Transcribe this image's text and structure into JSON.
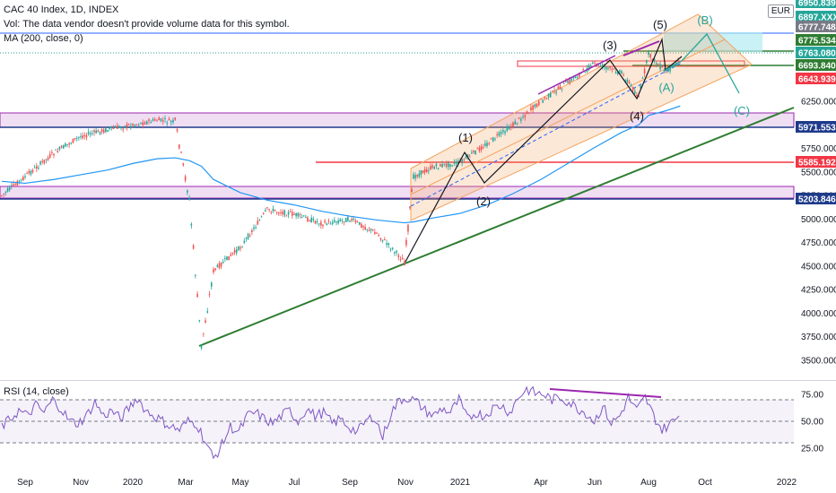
{
  "header": {
    "title": "CAC 40 Index, 1D, INDEX",
    "volume_note": "Vol: The data vendor doesn't provide volume data for this symbol.",
    "ma_label": "MA (200, close, 0)",
    "rsi_label": "RSI (14, close)",
    "currency": "EUR"
  },
  "colors": {
    "up": "#26a69a",
    "down": "#ef5350",
    "ma": "#2196f3",
    "trend": "#2e7d32",
    "channel": "#f4a460",
    "wave_black": "#131722",
    "wave_teal": "#26a69a",
    "rsi": "#7e57c2",
    "zone": "#9c27b0",
    "blue_line": "#1e3a8a",
    "red_line": "#f23645"
  },
  "x_axis": {
    "ticks": [
      "Sep",
      "Nov",
      "2020",
      "Mar",
      "May",
      "Jul",
      "Sep",
      "Nov",
      "2021",
      "Apr",
      "Jun",
      "Aug",
      "Oct",
      "2022"
    ]
  },
  "price_axis": {
    "ticks": [
      "6250.000",
      "6000.000",
      "5750.000",
      "5500.000",
      "5250.000",
      "5000.000",
      "4750.000",
      "4500.000",
      "4250.000",
      "4000.000",
      "3750.000",
      "3500.000"
    ],
    "tags": [
      {
        "value": "6950.839",
        "color": "#26a69a"
      },
      {
        "value": "6897.XXX",
        "color": "#26a69a"
      },
      {
        "value": "6777.748",
        "color": "#787b86"
      },
      {
        "value": "6775.534",
        "color": "#2e7d32"
      },
      {
        "value": "6763.080",
        "color": "#26a69a"
      },
      {
        "value": "6693.840",
        "color": "#2e7d32"
      },
      {
        "value": "6643.939",
        "color": "#f23645"
      },
      {
        "value": "5971.553",
        "color": "#1e3a8a"
      },
      {
        "value": "5585.192",
        "color": "#f23645"
      },
      {
        "value": "5203.846",
        "color": "#1e3a8a"
      }
    ]
  },
  "rsi_axis": {
    "ticks": [
      "75.00",
      "50.00",
      "25.00"
    ]
  },
  "waves": [
    "(1)",
    "(2)",
    "(3)",
    "(4)",
    "(5)",
    "(A)",
    "(B)",
    "(C)"
  ],
  "chart_data": {
    "type": "line",
    "title": "CAC 40 Index, 1D, INDEX",
    "xlabel": "",
    "ylabel": "",
    "ylim": [
      3400,
      6980
    ],
    "grid": false,
    "x": [
      "2019-08",
      "2019-09",
      "2019-10",
      "2019-11",
      "2019-12",
      "2020-01",
      "2020-02",
      "2020-02-20",
      "2020-03-05",
      "2020-03-18",
      "2020-04",
      "2020-05",
      "2020-06",
      "2020-07",
      "2020-08",
      "2020-09",
      "2020-10",
      "2020-10-30",
      "2020-11-10",
      "2020-12",
      "2021-01",
      "2021-02",
      "2021-03",
      "2021-04",
      "2021-05",
      "2021-06",
      "2021-07",
      "2021-07-20",
      "2021-08",
      "2021-08-20",
      "2021-09-05"
    ],
    "series": [
      {
        "name": "CAC 40 Index",
        "values": [
          5250,
          5450,
          5700,
          5880,
          5950,
          6000,
          6050,
          6030,
          5200,
          3650,
          4450,
          4700,
          5100,
          5050,
          4950,
          5000,
          4850,
          4550,
          5450,
          5550,
          5600,
          5800,
          6000,
          6250,
          6450,
          6650,
          6550,
          6300,
          6750,
          6550,
          6700
        ]
      },
      {
        "name": "MA (200, close, 0)",
        "values": [
          5400,
          5380,
          5420,
          5470,
          5520,
          5590,
          5640,
          5650,
          5620,
          5560,
          5420,
          5280,
          5200,
          5150,
          5080,
          5030,
          4990,
          4960,
          4970,
          5010,
          5060,
          5150,
          5270,
          5420,
          5590,
          5760,
          5920,
          6000,
          6100,
          6150,
          6200
        ]
      }
    ],
    "levels": [
      6950.839,
      6777.748,
      6775.534,
      6763.08,
      6693.84,
      6643.939,
      5971.553,
      5585.192,
      5203.846
    ],
    "rsi": {
      "name": "RSI (14, close)",
      "ylim": [
        10,
        90
      ],
      "bands": [
        30,
        50,
        70
      ],
      "values": [
        45,
        52,
        60,
        55,
        65,
        58,
        70,
        62,
        50,
        48,
        55,
        68,
        55,
        60,
        52,
        62,
        72,
        60,
        55,
        50,
        45,
        42,
        50,
        48,
        32,
        15,
        28,
        45,
        40,
        55,
        58,
        52,
        48,
        55,
        60,
        50,
        62,
        55,
        58,
        48,
        52,
        45,
        40,
        50,
        55,
        35,
        58,
        70,
        72,
        68,
        60,
        55,
        62,
        58,
        70,
        52,
        58,
        55,
        62,
        65,
        58,
        72,
        80,
        76,
        75,
        70,
        72,
        68,
        62,
        58,
        50,
        64,
        48,
        55,
        72,
        60,
        72,
        55,
        42,
        48,
        55
      ]
    }
  }
}
